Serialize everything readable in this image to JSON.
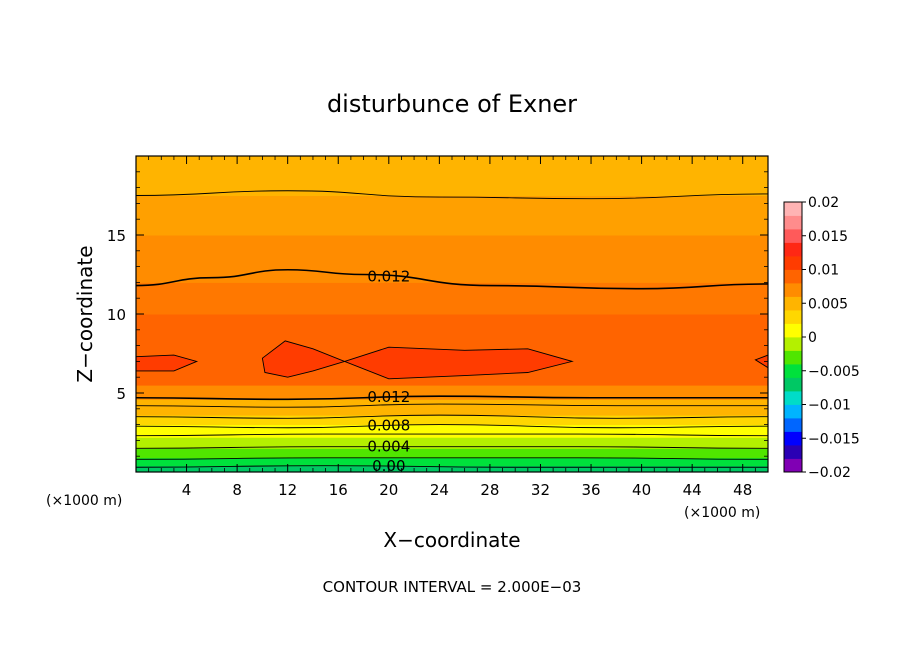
{
  "chart_data": {
    "type": "heatmap",
    "title": "disturbunce of Exner",
    "xlabel": "X−coordinate",
    "ylabel": "Z−coordinate",
    "x_unit": "(×1000 m)",
    "y_unit": "(×1000 m)",
    "xlim": [
      0,
      50
    ],
    "ylim": [
      0,
      20
    ],
    "x_ticks": [
      4,
      8,
      12,
      16,
      20,
      24,
      28,
      32,
      36,
      40,
      44,
      48
    ],
    "y_ticks": [
      5,
      10,
      15
    ],
    "colorbar": {
      "min": -0.02,
      "max": 0.02,
      "tick_labels": [
        "0.02",
        "0.015",
        "0.01",
        "0.005",
        "0",
        "−0.005",
        "−0.01",
        "−0.015",
        "−0.02"
      ],
      "colors": [
        "#8000b4",
        "#2a00b4",
        "#0000ff",
        "#0066ff",
        "#00b4ff",
        "#00dcc8",
        "#00c864",
        "#00e13c",
        "#50e600",
        "#b4f000",
        "#ffff00",
        "#ffd700",
        "#ffb400",
        "#ff8c00",
        "#ff6400",
        "#ff3c00",
        "#ff2814",
        "#ff5a5a",
        "#ff8c8c",
        "#ffb4b4"
      ]
    },
    "fill_bands": [
      {
        "z": [
          0.0,
          0.4
        ],
        "value_range": [
          -0.002,
          0.0
        ],
        "color": "#00c864"
      },
      {
        "z": [
          0.4,
          0.9
        ],
        "value_range": [
          0.0,
          0.002
        ],
        "color": "#00e13c"
      },
      {
        "z": [
          0.9,
          1.5
        ],
        "value_range": [
          0.002,
          0.004
        ],
        "color": "#50e600"
      },
      {
        "z": [
          1.5,
          2.2
        ],
        "value_range": [
          0.004,
          0.006
        ],
        "color": "#b4f000"
      },
      {
        "z": [
          2.2,
          3.0
        ],
        "value_range": [
          0.006,
          0.008
        ],
        "color": "#ffff00"
      },
      {
        "z": [
          3.0,
          3.6
        ],
        "value_range": [
          0.008,
          0.009
        ],
        "color": "#ffd700"
      },
      {
        "z": [
          3.6,
          4.6
        ],
        "value_range": [
          0.009,
          0.011
        ],
        "color": "#ffb400"
      },
      {
        "z": [
          4.6,
          5.5
        ],
        "value_range": [
          0.011,
          0.012
        ],
        "color": "#ff8c00"
      },
      {
        "z": [
          5.5,
          10.0
        ],
        "value_range": [
          0.012,
          0.014
        ],
        "color": "#ff6400"
      },
      {
        "z": [
          10.0,
          12.0
        ],
        "value_range": [
          0.012,
          0.013
        ],
        "color": "#ff7800"
      },
      {
        "z": [
          12.0,
          15.0
        ],
        "value_range": [
          0.011,
          0.012
        ],
        "color": "#ff8c00"
      },
      {
        "z": [
          15.0,
          17.5
        ],
        "value_range": [
          0.01,
          0.011
        ],
        "color": "#ffa000"
      },
      {
        "z": [
          17.5,
          20.0
        ],
        "value_range": [
          0.009,
          0.01
        ],
        "color": "#ffb400"
      }
    ],
    "contours": [
      {
        "value": 0.0,
        "label": "0.00",
        "points": [
          [
            0,
            0.3
          ],
          [
            15,
            0.4
          ],
          [
            30,
            0.3
          ],
          [
            50,
            0.3
          ]
        ]
      },
      {
        "value": 0.002,
        "label": "",
        "points": [
          [
            0,
            0.8
          ],
          [
            15,
            0.9
          ],
          [
            35,
            0.9
          ],
          [
            50,
            0.8
          ]
        ]
      },
      {
        "value": 0.004,
        "label": "0.004",
        "points": [
          [
            0,
            1.5
          ],
          [
            15,
            1.6
          ],
          [
            35,
            1.6
          ],
          [
            50,
            1.5
          ]
        ]
      },
      {
        "value": 0.006,
        "label": "",
        "points": [
          [
            0,
            2.3
          ],
          [
            15,
            2.4
          ],
          [
            35,
            2.4
          ],
          [
            50,
            2.3
          ]
        ]
      },
      {
        "value": 0.008,
        "label": "0.008",
        "points": [
          [
            0,
            2.9
          ],
          [
            12,
            2.8
          ],
          [
            24,
            3.0
          ],
          [
            38,
            2.8
          ],
          [
            50,
            2.9
          ]
        ]
      },
      {
        "value": 0.009,
        "label": "",
        "points": [
          [
            0,
            3.5
          ],
          [
            12,
            3.4
          ],
          [
            24,
            3.6
          ],
          [
            38,
            3.4
          ],
          [
            50,
            3.5
          ]
        ]
      },
      {
        "value": 0.01,
        "label": "",
        "points": [
          [
            0,
            4.2
          ],
          [
            12,
            4.1
          ],
          [
            24,
            4.3
          ],
          [
            38,
            4.2
          ],
          [
            50,
            4.2
          ]
        ]
      },
      {
        "value": 0.012,
        "label": "0.012",
        "points": [
          [
            0,
            4.7
          ],
          [
            12,
            4.6
          ],
          [
            24,
            4.8
          ],
          [
            36,
            4.7
          ],
          [
            50,
            4.7
          ]
        ]
      },
      {
        "value": 0.012,
        "label": "0.012",
        "points": [
          [
            0,
            11.8
          ],
          [
            6,
            12.3
          ],
          [
            12,
            12.8
          ],
          [
            18,
            12.5
          ],
          [
            28,
            11.8
          ],
          [
            40,
            11.6
          ],
          [
            50,
            11.9
          ]
        ]
      },
      {
        "value": 0.01,
        "label": "",
        "points": [
          [
            0,
            17.5
          ],
          [
            12,
            17.8
          ],
          [
            24,
            17.4
          ],
          [
            36,
            17.3
          ],
          [
            50,
            17.6
          ]
        ]
      },
      {
        "value": 0.014,
        "label": "",
        "closed": true,
        "points": [
          [
            0,
            7.3
          ],
          [
            3,
            7.4
          ],
          [
            4.8,
            7.0
          ],
          [
            3,
            6.4
          ],
          [
            0,
            6.4
          ]
        ]
      },
      {
        "value": 0.014,
        "label": "",
        "closed": true,
        "points": [
          [
            10,
            7.2
          ],
          [
            11.8,
            8.3
          ],
          [
            14,
            7.8
          ],
          [
            16.5,
            7.0
          ],
          [
            14,
            6.4
          ],
          [
            12,
            6.0
          ],
          [
            10.2,
            6.3
          ]
        ]
      },
      {
        "value": 0.014,
        "label": "",
        "closed": true,
        "points": [
          [
            16.5,
            7.0
          ],
          [
            20,
            7.9
          ],
          [
            26,
            7.7
          ],
          [
            31,
            7.8
          ],
          [
            34.5,
            7.0
          ],
          [
            31,
            6.3
          ],
          [
            26,
            6.1
          ],
          [
            20,
            5.9
          ]
        ]
      },
      {
        "value": 0.014,
        "label": "",
        "closed": true,
        "points": [
          [
            50,
            7.4
          ],
          [
            49,
            7.1
          ],
          [
            50,
            6.6
          ]
        ]
      }
    ]
  },
  "footnote": "CONTOUR INTERVAL = 2.000E−03"
}
